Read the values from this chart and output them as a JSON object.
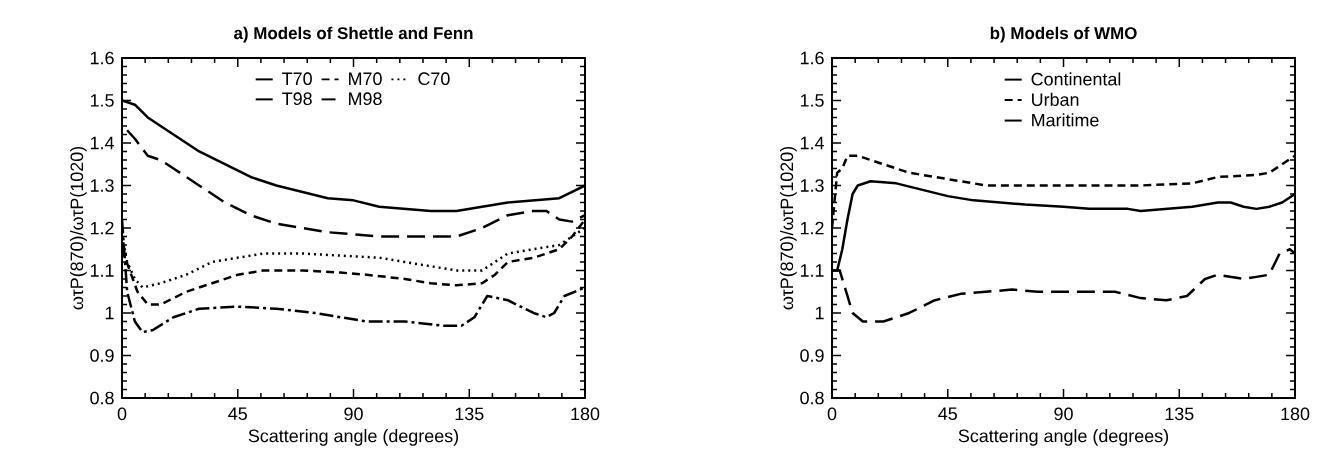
{
  "chart_data": [
    {
      "type": "line",
      "title": "a) Models of Shettle and Fenn",
      "xlabel": "Scattering angle (degrees)",
      "ylabel": "ωτP(870)/ωτP(1020)",
      "xlim": [
        0,
        180
      ],
      "xticks": [
        0,
        45,
        90,
        135,
        180
      ],
      "ylim": [
        0.8,
        1.6
      ],
      "yticks": [
        {
          "value": 0.8,
          "label": "0.8"
        },
        {
          "value": 0.9,
          "label": "0.9"
        },
        {
          "value": 1,
          "label": "1"
        },
        {
          "value": 1.1,
          "label": "1.1"
        },
        {
          "value": 1.2,
          "label": "1.2"
        },
        {
          "value": 1.3,
          "label": "1.3"
        },
        {
          "value": 1.4,
          "label": "1.4"
        },
        {
          "value": 1.5,
          "label": "1.5"
        },
        {
          "value": 1.6,
          "label": "1.6"
        }
      ],
      "grid": false,
      "legend": "top",
      "marker": "none",
      "series": [
        {
          "name": "T70",
          "color": "#000000",
          "line_style": "solid",
          "x": [
            0,
            5,
            10,
            20,
            30,
            40,
            50,
            60,
            70,
            80,
            90,
            100,
            110,
            120,
            130,
            140,
            150,
            160,
            170,
            175,
            180
          ],
          "values": [
            1.5,
            1.49,
            1.46,
            1.42,
            1.38,
            1.35,
            1.32,
            1.3,
            1.285,
            1.27,
            1.265,
            1.25,
            1.245,
            1.24,
            1.24,
            1.25,
            1.26,
            1.265,
            1.27,
            1.285,
            1.3
          ]
        },
        {
          "name": "M70",
          "color": "#000000",
          "line_style": "dashed",
          "x": [
            0,
            3,
            6,
            10,
            15,
            25,
            35,
            45,
            55,
            70,
            85,
            95,
            110,
            120,
            130,
            140,
            145,
            150,
            160,
            170,
            175,
            180
          ],
          "values": [
            1.15,
            1.1,
            1.05,
            1.02,
            1.02,
            1.05,
            1.07,
            1.09,
            1.1,
            1.1,
            1.095,
            1.09,
            1.08,
            1.07,
            1.065,
            1.07,
            1.09,
            1.12,
            1.13,
            1.15,
            1.18,
            1.22
          ]
        },
        {
          "name": "C70",
          "color": "#000000",
          "line_style": "dotted",
          "x": [
            0,
            2,
            5,
            8,
            15,
            25,
            35,
            45,
            55,
            70,
            85,
            100,
            110,
            120,
            130,
            140,
            145,
            150,
            160,
            170,
            175,
            180
          ],
          "values": [
            1.18,
            1.12,
            1.08,
            1.06,
            1.07,
            1.09,
            1.12,
            1.13,
            1.14,
            1.14,
            1.135,
            1.13,
            1.12,
            1.11,
            1.1,
            1.1,
            1.12,
            1.14,
            1.15,
            1.16,
            1.18,
            1.2
          ]
        },
        {
          "name": "T98",
          "color": "#000000",
          "line_style": "longdashed",
          "x": [
            2,
            5,
            10,
            15,
            20,
            30,
            40,
            50,
            60,
            70,
            80,
            90,
            100,
            110,
            120,
            130,
            140,
            150,
            160,
            165,
            170,
            175,
            180
          ],
          "values": [
            1.43,
            1.41,
            1.37,
            1.36,
            1.34,
            1.3,
            1.26,
            1.23,
            1.21,
            1.2,
            1.19,
            1.185,
            1.18,
            1.18,
            1.18,
            1.18,
            1.2,
            1.23,
            1.24,
            1.24,
            1.22,
            1.215,
            1.23
          ]
        },
        {
          "name": "M98",
          "color": "#000000",
          "line_style": "dashdot",
          "x": [
            0,
            2,
            5,
            8,
            12,
            20,
            30,
            45,
            60,
            75,
            85,
            95,
            110,
            125,
            132,
            137,
            142,
            150,
            160,
            165,
            168,
            172,
            176,
            180
          ],
          "values": [
            1.22,
            1.05,
            0.98,
            0.955,
            0.96,
            0.99,
            1.01,
            1.015,
            1.01,
            1.0,
            0.99,
            0.98,
            0.98,
            0.97,
            0.97,
            0.99,
            1.04,
            1.03,
            1.0,
            0.99,
            1.0,
            1.04,
            1.05,
            1.06
          ]
        }
      ]
    },
    {
      "type": "line",
      "title": "b) Models of WMO",
      "xlabel": "Scattering angle (degrees)",
      "ylabel": "ωτP(870)/ωτP(1020)",
      "xlim": [
        0,
        180
      ],
      "xticks": [
        0,
        45,
        90,
        135,
        180
      ],
      "ylim": [
        0.8,
        1.6
      ],
      "yticks": [
        {
          "value": 0.8,
          "label": "0.8"
        },
        {
          "value": 0.9,
          "label": "0.9"
        },
        {
          "value": 1,
          "label": "1"
        },
        {
          "value": 1.1,
          "label": "1.1"
        },
        {
          "value": 1.2,
          "label": "1.2"
        },
        {
          "value": 1.3,
          "label": "1.3"
        },
        {
          "value": 1.4,
          "label": "1.4"
        },
        {
          "value": 1.5,
          "label": "1.5"
        },
        {
          "value": 1.6,
          "label": "1.6"
        }
      ],
      "grid": false,
      "legend": "top",
      "marker": "none",
      "series": [
        {
          "name": "Continental",
          "color": "#000000",
          "line_style": "solid",
          "x": [
            0,
            2,
            4,
            6,
            8,
            10,
            15,
            25,
            35,
            45,
            55,
            65,
            75,
            90,
            100,
            115,
            120,
            130,
            140,
            150,
            155,
            160,
            165,
            170,
            175,
            180
          ],
          "values": [
            1.1,
            1.1,
            1.15,
            1.22,
            1.28,
            1.3,
            1.31,
            1.305,
            1.29,
            1.275,
            1.265,
            1.26,
            1.255,
            1.25,
            1.245,
            1.245,
            1.24,
            1.245,
            1.25,
            1.26,
            1.26,
            1.25,
            1.245,
            1.25,
            1.26,
            1.28
          ]
        },
        {
          "name": "Urban",
          "color": "#000000",
          "line_style": "dashed",
          "x": [
            0,
            2,
            4,
            6,
            10,
            20,
            30,
            40,
            50,
            60,
            90,
            120,
            140,
            150,
            165,
            170,
            175,
            180
          ],
          "values": [
            1.2,
            1.33,
            1.34,
            1.37,
            1.37,
            1.35,
            1.33,
            1.32,
            1.31,
            1.3,
            1.3,
            1.3,
            1.305,
            1.32,
            1.325,
            1.33,
            1.35,
            1.37
          ]
        },
        {
          "name": "Maritime",
          "color": "#000000",
          "line_style": "longdashed",
          "x": [
            0,
            3,
            6,
            8,
            12,
            20,
            30,
            40,
            50,
            60,
            70,
            80,
            90,
            110,
            120,
            130,
            138,
            145,
            150,
            160,
            165,
            170,
            174,
            178,
            180
          ],
          "values": [
            1.1,
            1.1,
            1.04,
            1.0,
            0.98,
            0.98,
            1.0,
            1.03,
            1.045,
            1.05,
            1.055,
            1.05,
            1.05,
            1.05,
            1.035,
            1.03,
            1.04,
            1.08,
            1.09,
            1.08,
            1.085,
            1.09,
            1.14,
            1.15,
            1.14
          ]
        }
      ]
    }
  ]
}
